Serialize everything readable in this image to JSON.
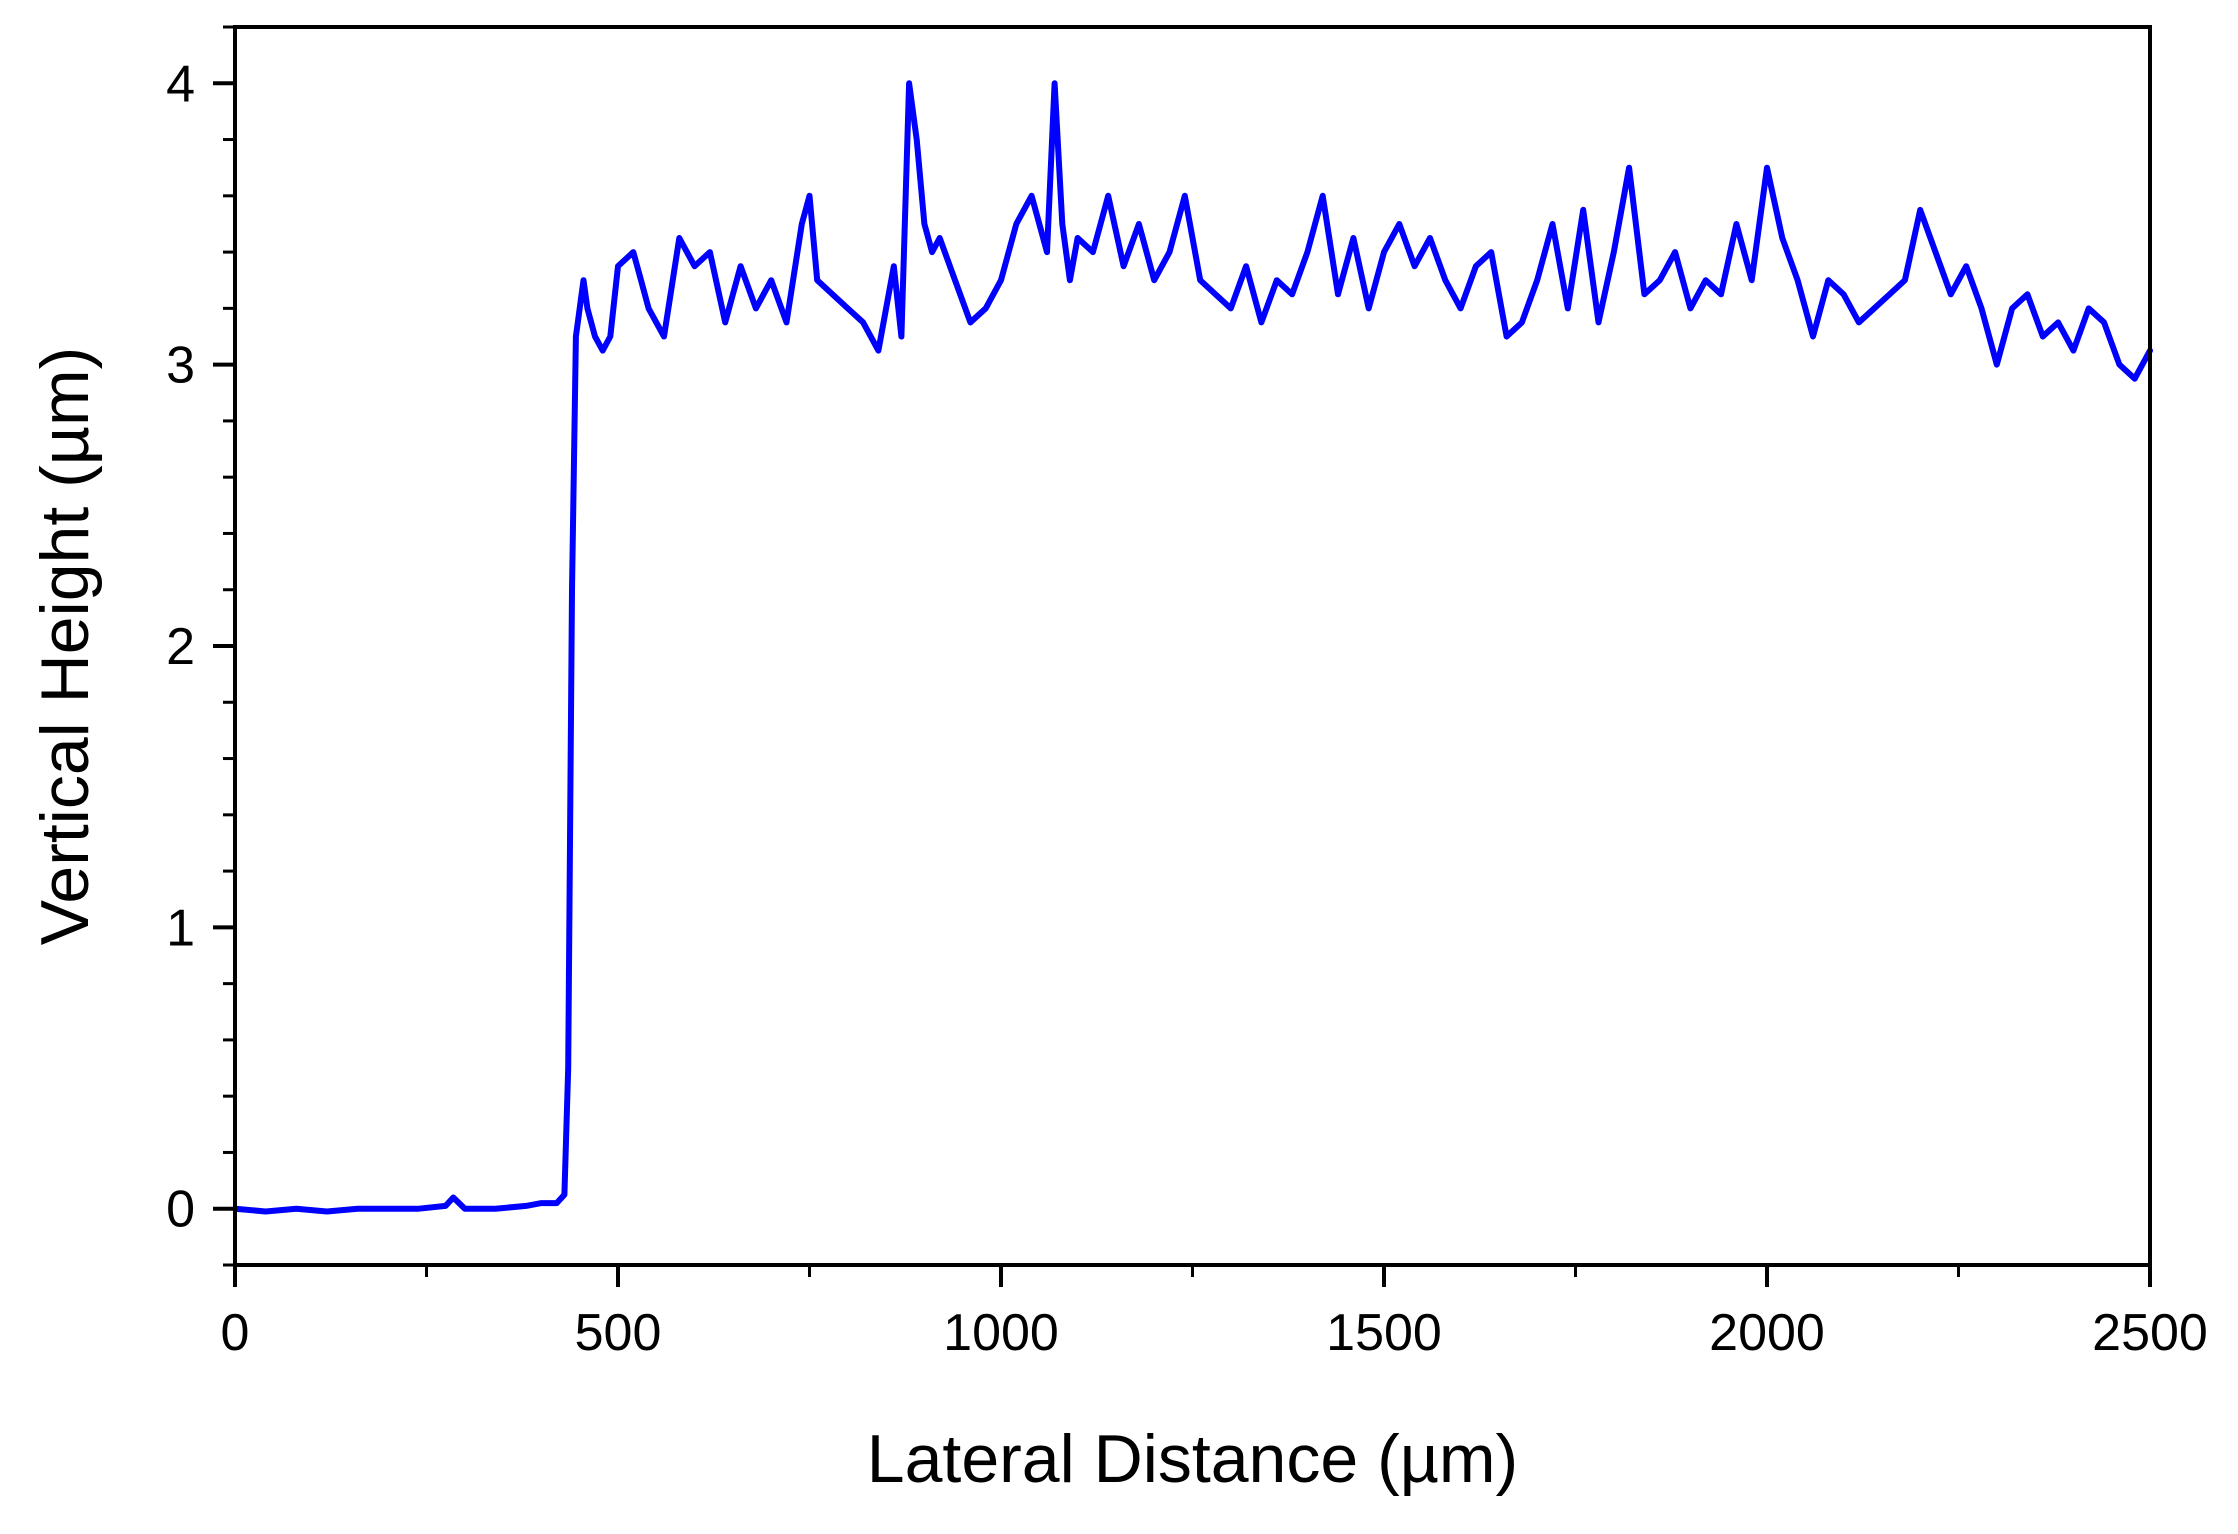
{
  "chart_data": {
    "type": "line",
    "title": "",
    "xlabel": "Lateral Distance (µm)",
    "ylabel": "Vertical Height (µm)",
    "xlim": [
      0,
      2500
    ],
    "ylim": [
      -0.2,
      4.2
    ],
    "x_ticks": [
      0,
      500,
      1000,
      1500,
      2000,
      2500
    ],
    "x_tick_labels": [
      "0",
      "500",
      "1000",
      "1500",
      "2000",
      "2500"
    ],
    "y_ticks": [
      0,
      1,
      2,
      3,
      4
    ],
    "y_tick_labels": [
      "0",
      "1",
      "2",
      "3",
      "4"
    ],
    "grid": false,
    "legend": "none",
    "line_color": "#0000ff",
    "series": [
      {
        "x": [
          0,
          40,
          80,
          120,
          160,
          200,
          240,
          275,
          285,
          300,
          340,
          380,
          400,
          420,
          430,
          435,
          440,
          445,
          450,
          455,
          460,
          470,
          480,
          490,
          500,
          520,
          530,
          540,
          560,
          580,
          600,
          620,
          640,
          660,
          680,
          700,
          720,
          740,
          750,
          760,
          780,
          800,
          820,
          840,
          850,
          860,
          870,
          880,
          890,
          900,
          910,
          920,
          940,
          960,
          980,
          1000,
          1020,
          1040,
          1060,
          1070,
          1080,
          1090,
          1100,
          1120,
          1140,
          1160,
          1180,
          1200,
          1220,
          1240,
          1260,
          1280,
          1300,
          1320,
          1340,
          1360,
          1380,
          1400,
          1420,
          1440,
          1460,
          1480,
          1500,
          1520,
          1540,
          1560,
          1580,
          1600,
          1620,
          1640,
          1660,
          1680,
          1700,
          1720,
          1740,
          1760,
          1780,
          1800,
          1820,
          1840,
          1860,
          1880,
          1900,
          1920,
          1940,
          1960,
          1980,
          2000,
          2020,
          2040,
          2060,
          2080,
          2100,
          2120,
          2140,
          2160,
          2180,
          2200,
          2220,
          2240,
          2260,
          2280,
          2300,
          2320,
          2340,
          2360,
          2380,
          2400,
          2420,
          2440,
          2460,
          2480,
          2500
        ],
        "y": [
          0.0,
          -0.01,
          0.0,
          -0.01,
          0.0,
          0.0,
          0.0,
          0.01,
          0.04,
          0.0,
          0.0,
          0.01,
          0.02,
          0.02,
          0.05,
          0.5,
          2.2,
          3.1,
          3.2,
          3.3,
          3.2,
          3.1,
          3.05,
          3.1,
          3.35,
          3.4,
          3.3,
          3.2,
          3.1,
          3.45,
          3.35,
          3.4,
          3.15,
          3.35,
          3.2,
          3.3,
          3.15,
          3.5,
          3.6,
          3.3,
          3.25,
          3.2,
          3.15,
          3.05,
          3.2,
          3.35,
          3.1,
          4.0,
          3.8,
          3.5,
          3.4,
          3.45,
          3.3,
          3.15,
          3.2,
          3.3,
          3.5,
          3.6,
          3.4,
          4.0,
          3.5,
          3.3,
          3.45,
          3.4,
          3.6,
          3.35,
          3.5,
          3.3,
          3.4,
          3.6,
          3.3,
          3.25,
          3.2,
          3.35,
          3.15,
          3.3,
          3.25,
          3.4,
          3.6,
          3.25,
          3.45,
          3.2,
          3.4,
          3.5,
          3.35,
          3.45,
          3.3,
          3.2,
          3.35,
          3.4,
          3.1,
          3.15,
          3.3,
          3.5,
          3.2,
          3.55,
          3.15,
          3.4,
          3.7,
          3.25,
          3.3,
          3.4,
          3.2,
          3.3,
          3.25,
          3.5,
          3.3,
          3.7,
          3.45,
          3.3,
          3.1,
          3.3,
          3.25,
          3.15,
          3.2,
          3.25,
          3.3,
          3.55,
          3.4,
          3.25,
          3.35,
          3.2,
          3.0,
          3.2,
          3.25,
          3.1,
          3.15,
          3.05,
          3.2,
          3.15,
          3.0,
          2.95,
          3.05
        ]
      }
    ]
  }
}
